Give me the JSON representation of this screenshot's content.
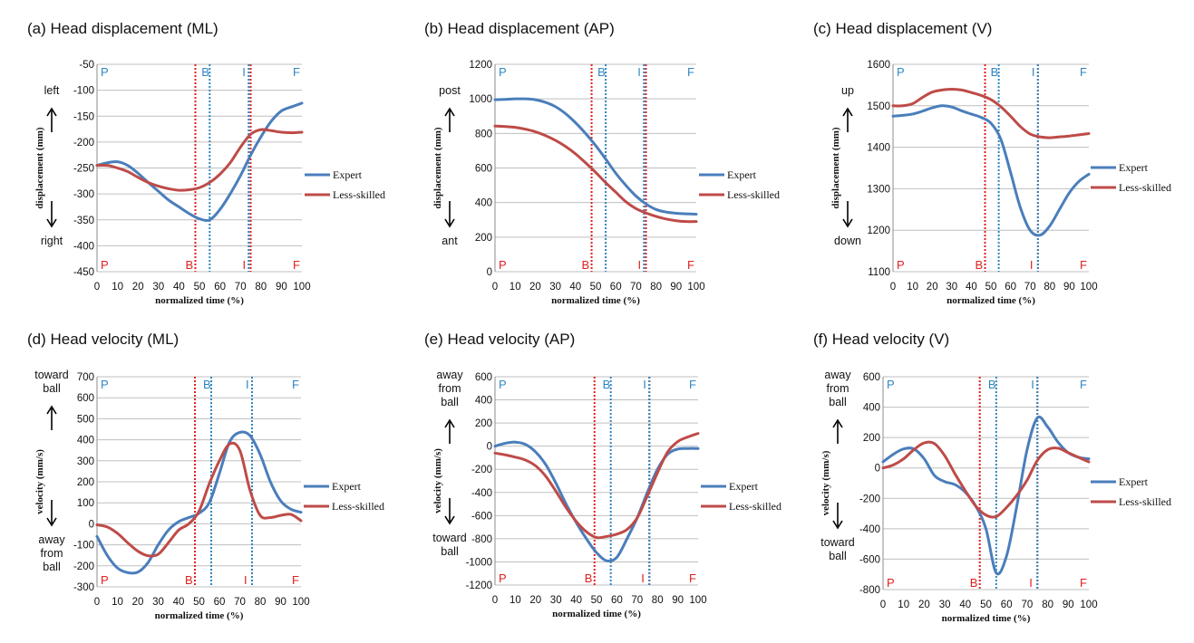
{
  "colors": {
    "expert": "#4a7ebb",
    "less_skilled": "#be4b48",
    "phase_blue": "#2e86c1",
    "phase_red": "#e02020",
    "grid": "#bfbfbf"
  },
  "chart_data": [
    {
      "type": "line",
      "title": "(a) Head displacement (ML)",
      "xlabel": "normalized time (%)",
      "ylabel": "displacement (mm)",
      "xlim": [
        0,
        100
      ],
      "ylim": [
        -450,
        -50
      ],
      "xticks": [
        "0",
        "10",
        "20",
        "30",
        "40",
        "50",
        "60",
        "70",
        "80",
        "90",
        "100"
      ],
      "yticks": [
        "-50",
        "-100",
        "-150",
        "-200",
        "-250",
        "-300",
        "-350",
        "-400",
        "-450"
      ],
      "dir_top": "left",
      "dir_bottom": "right",
      "series": [
        {
          "name": "Expert",
          "x": [
            0,
            5,
            10,
            15,
            20,
            25,
            30,
            35,
            40,
            45,
            50,
            55,
            60,
            65,
            70,
            75,
            80,
            85,
            90,
            95,
            100
          ],
          "y": [
            -245,
            -240,
            -238,
            -245,
            -260,
            -278,
            -295,
            -312,
            -325,
            -338,
            -348,
            -350,
            -330,
            -300,
            -265,
            -225,
            -190,
            -160,
            -140,
            -132,
            -125
          ]
        },
        {
          "name": "Less-skilled",
          "x": [
            0,
            5,
            10,
            15,
            20,
            25,
            30,
            35,
            40,
            45,
            50,
            55,
            60,
            65,
            70,
            75,
            80,
            85,
            90,
            95,
            100
          ],
          "y": [
            -245,
            -245,
            -250,
            -257,
            -268,
            -278,
            -285,
            -290,
            -293,
            -292,
            -288,
            -278,
            -262,
            -240,
            -210,
            -185,
            -176,
            -178,
            -181,
            -182,
            -181
          ]
        }
      ],
      "vlines_blue": [
        55,
        74
      ],
      "vlines_red": [
        48,
        75
      ],
      "phase_top": [
        "P",
        "B",
        "I",
        "F"
      ],
      "phase_bottom": [
        "P",
        "B",
        "I",
        "F"
      ]
    },
    {
      "type": "line",
      "title": "(b) Head displacement (AP)",
      "xlabel": "normalized time (%)",
      "ylabel": "displacement (mm)",
      "xlim": [
        0,
        100
      ],
      "ylim": [
        0,
        1200
      ],
      "xticks": [
        "0",
        "10",
        "20",
        "30",
        "40",
        "50",
        "60",
        "70",
        "80",
        "90",
        "100"
      ],
      "yticks": [
        "1200",
        "1000",
        "800",
        "600",
        "400",
        "200",
        "0"
      ],
      "dir_top": "post",
      "dir_bottom": "ant",
      "series": [
        {
          "name": "Expert",
          "x": [
            0,
            5,
            10,
            15,
            20,
            25,
            30,
            35,
            40,
            45,
            50,
            55,
            60,
            65,
            70,
            75,
            80,
            85,
            90,
            95,
            100
          ],
          "y": [
            995,
            997,
            1000,
            1000,
            995,
            980,
            955,
            915,
            862,
            800,
            730,
            652,
            570,
            500,
            438,
            392,
            360,
            345,
            338,
            335,
            333
          ]
        },
        {
          "name": "Less-skilled",
          "x": [
            0,
            5,
            10,
            15,
            20,
            25,
            30,
            35,
            40,
            45,
            50,
            55,
            60,
            65,
            70,
            75,
            80,
            85,
            90,
            95,
            100
          ],
          "y": [
            843,
            840,
            835,
            825,
            810,
            788,
            760,
            725,
            682,
            630,
            575,
            515,
            460,
            405,
            365,
            340,
            320,
            305,
            295,
            290,
            290
          ]
        }
      ],
      "vlines_blue": [
        55,
        74
      ],
      "vlines_red": [
        48,
        75
      ],
      "phase_top": [
        "P",
        "B",
        "I",
        "F"
      ],
      "phase_bottom": [
        "P",
        "B",
        "I",
        "F"
      ]
    },
    {
      "type": "line",
      "title": "(c) Head displacement (V)",
      "xlabel": "normalized time (%)",
      "ylabel": "displacement (mm)",
      "xlim": [
        0,
        100
      ],
      "ylim": [
        1100,
        1600
      ],
      "xticks": [
        "0",
        "10",
        "20",
        "30",
        "40",
        "50",
        "60",
        "70",
        "80",
        "90",
        "100"
      ],
      "yticks": [
        "1600",
        "1500",
        "1400",
        "1300",
        "1200",
        "1100"
      ],
      "dir_top": "up",
      "dir_bottom": "down",
      "series": [
        {
          "name": "Expert",
          "x": [
            0,
            5,
            10,
            15,
            20,
            25,
            30,
            35,
            40,
            45,
            50,
            55,
            60,
            65,
            70,
            75,
            80,
            85,
            90,
            95,
            100
          ],
          "y": [
            1475,
            1477,
            1480,
            1487,
            1495,
            1500,
            1497,
            1488,
            1480,
            1472,
            1458,
            1420,
            1340,
            1255,
            1200,
            1188,
            1210,
            1250,
            1290,
            1318,
            1335
          ]
        },
        {
          "name": "Less-skilled",
          "x": [
            0,
            5,
            10,
            15,
            20,
            25,
            30,
            35,
            40,
            45,
            50,
            55,
            60,
            65,
            70,
            75,
            80,
            85,
            90,
            95,
            100
          ],
          "y": [
            1500,
            1500,
            1505,
            1520,
            1533,
            1538,
            1540,
            1538,
            1532,
            1525,
            1515,
            1498,
            1475,
            1450,
            1432,
            1425,
            1423,
            1425,
            1427,
            1430,
            1433
          ]
        }
      ],
      "vlines_blue": [
        54,
        74
      ],
      "vlines_red": [
        47,
        74
      ],
      "phase_top": [
        "P",
        "B",
        "I",
        "F"
      ],
      "phase_bottom": [
        "P",
        "B",
        "I",
        "F"
      ]
    },
    {
      "type": "line",
      "title": "(d) Head velocity (ML)",
      "xlabel": "normalized time (%)",
      "ylabel": "velocity (mm/s)",
      "xlim": [
        0,
        100
      ],
      "ylim": [
        -300,
        700
      ],
      "xticks": [
        "0",
        "10",
        "20",
        "30",
        "40",
        "50",
        "60",
        "70",
        "80",
        "90",
        "100"
      ],
      "yticks": [
        "700",
        "600",
        "500",
        "400",
        "300",
        "200",
        "100",
        "0",
        "-100",
        "-200",
        "-300"
      ],
      "dir_top": "toward ball",
      "dir_bottom": "away from ball",
      "series": [
        {
          "name": "Expert",
          "x": [
            0,
            5,
            10,
            15,
            20,
            25,
            30,
            35,
            40,
            45,
            50,
            55,
            60,
            65,
            70,
            75,
            80,
            85,
            90,
            95,
            100
          ],
          "y": [
            -60,
            -150,
            -210,
            -232,
            -230,
            -185,
            -100,
            -30,
            10,
            30,
            50,
            100,
            240,
            390,
            435,
            420,
            330,
            200,
            110,
            70,
            55
          ]
        },
        {
          "name": "Less-skilled",
          "x": [
            0,
            5,
            10,
            15,
            20,
            25,
            30,
            35,
            40,
            45,
            50,
            55,
            60,
            65,
            70,
            75,
            80,
            85,
            90,
            95,
            100
          ],
          "y": [
            -5,
            -15,
            -45,
            -90,
            -130,
            -152,
            -145,
            -90,
            -30,
            0,
            60,
            190,
            300,
            380,
            350,
            160,
            40,
            30,
            40,
            45,
            15
          ]
        }
      ],
      "vlines_blue": [
        56,
        76
      ],
      "vlines_red": [
        48,
        76
      ],
      "phase_top": [
        "P",
        "B",
        "I",
        "F"
      ],
      "phase_bottom": [
        "P",
        "B",
        "I",
        "F"
      ]
    },
    {
      "type": "line",
      "title": "(e) Head velocity (AP)",
      "xlabel": "normalized time (%)",
      "ylabel": "velocity (mm/s)",
      "xlim": [
        0,
        100
      ],
      "ylim": [
        -1200,
        600
      ],
      "xticks": [
        "0",
        "10",
        "20",
        "30",
        "40",
        "50",
        "60",
        "70",
        "80",
        "90",
        "100"
      ],
      "yticks": [
        "600",
        "400",
        "200",
        "0",
        "-200",
        "-400",
        "-600",
        "-800",
        "-1000",
        "-1200"
      ],
      "dir_top": "away from ball",
      "dir_bottom": "toward ball",
      "series": [
        {
          "name": "Expert",
          "x": [
            0,
            5,
            10,
            15,
            20,
            25,
            30,
            35,
            40,
            45,
            50,
            55,
            60,
            65,
            70,
            75,
            80,
            85,
            90,
            95,
            100
          ],
          "y": [
            0,
            25,
            35,
            15,
            -50,
            -160,
            -320,
            -500,
            -660,
            -800,
            -920,
            -990,
            -960,
            -800,
            -620,
            -400,
            -200,
            -70,
            -25,
            -20,
            -20
          ]
        },
        {
          "name": "Less-skilled",
          "x": [
            0,
            5,
            10,
            15,
            20,
            25,
            30,
            35,
            40,
            45,
            50,
            55,
            60,
            65,
            70,
            75,
            80,
            85,
            90,
            95,
            100
          ],
          "y": [
            -60,
            -75,
            -95,
            -120,
            -170,
            -260,
            -390,
            -530,
            -650,
            -740,
            -790,
            -780,
            -760,
            -720,
            -620,
            -430,
            -230,
            -50,
            40,
            80,
            110
          ]
        }
      ],
      "vlines_blue": [
        57,
        76
      ],
      "vlines_red": [
        49,
        76
      ],
      "phase_top": [
        "P",
        "B",
        "I",
        "F"
      ],
      "phase_bottom": [
        "P",
        "B",
        "I",
        "F"
      ]
    },
    {
      "type": "line",
      "title": "(f) Head velocity (V)",
      "xlabel": "normalized time (%)",
      "ylabel": "velocity (mm/s)",
      "xlim": [
        0,
        100
      ],
      "ylim": [
        -800,
        600
      ],
      "xticks": [
        "0",
        "10",
        "20",
        "30",
        "40",
        "50",
        "60",
        "70",
        "80",
        "90",
        "100"
      ],
      "yticks": [
        "600",
        "400",
        "200",
        "0",
        "-200",
        "-400",
        "-600",
        "-800"
      ],
      "dir_top": "away from ball",
      "dir_bottom": "toward ball",
      "series": [
        {
          "name": "Expert",
          "x": [
            0,
            5,
            10,
            15,
            20,
            25,
            30,
            35,
            40,
            45,
            50,
            55,
            60,
            65,
            70,
            75,
            80,
            85,
            90,
            95,
            100
          ],
          "y": [
            40,
            90,
            125,
            125,
            60,
            -50,
            -90,
            -110,
            -160,
            -250,
            -400,
            -690,
            -580,
            -250,
            120,
            330,
            270,
            170,
            100,
            70,
            60
          ]
        },
        {
          "name": "Less-skilled",
          "x": [
            0,
            5,
            10,
            15,
            20,
            25,
            30,
            35,
            40,
            45,
            50,
            55,
            60,
            65,
            70,
            75,
            80,
            85,
            90,
            95,
            100
          ],
          "y": [
            0,
            20,
            60,
            120,
            165,
            160,
            80,
            -40,
            -150,
            -250,
            -310,
            -320,
            -260,
            -180,
            -80,
            50,
            120,
            130,
            100,
            70,
            40
          ]
        }
      ],
      "vlines_blue": [
        55,
        75
      ],
      "vlines_red": [
        47,
        75
      ],
      "phase_top": [
        "P",
        "B",
        "I",
        "F"
      ],
      "phase_bottom": [
        "P",
        "B",
        "I",
        "F"
      ]
    }
  ]
}
